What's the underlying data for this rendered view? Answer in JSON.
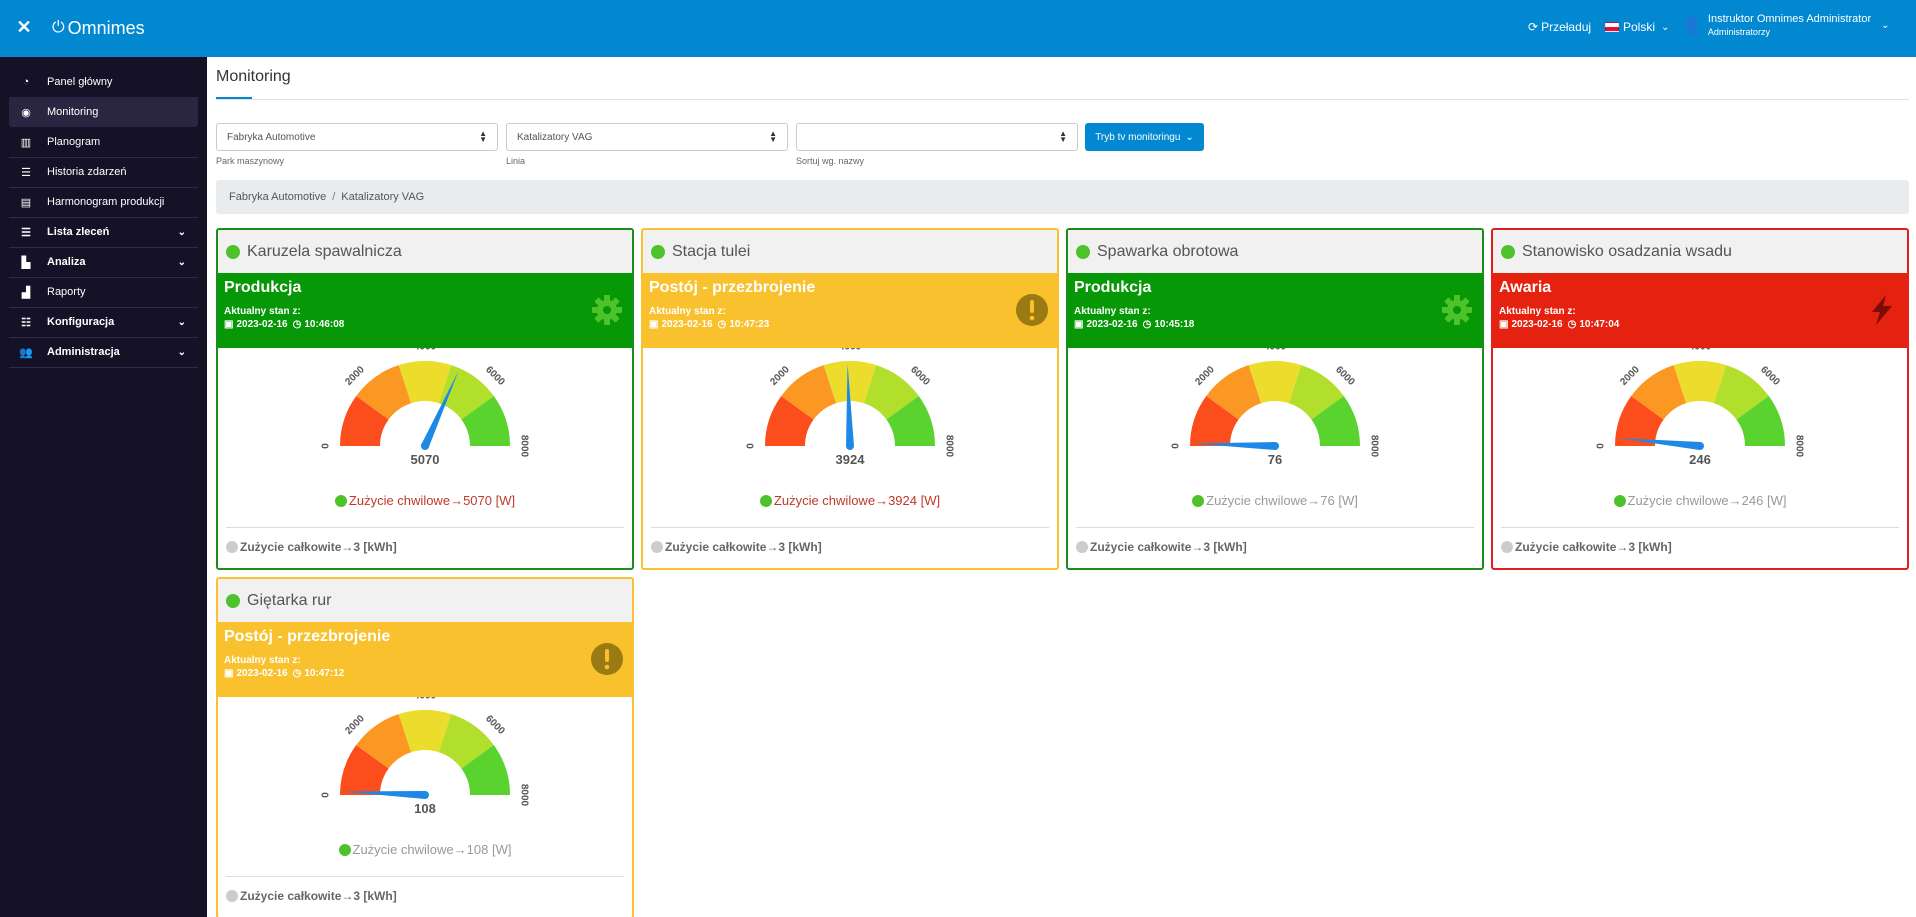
{
  "topbar": {
    "close_glyph": "✕",
    "brand": "Omnimes",
    "reload": "Przeładuj",
    "language": "Polski",
    "user_name": "Instruktor Omnimes Administrator",
    "user_role": "Administratorzy"
  },
  "sidebar": {
    "items": [
      {
        "label": "Panel główny",
        "icon": "dashboard-icon"
      },
      {
        "label": "Monitoring",
        "icon": "eye-icon"
      },
      {
        "label": "Planogram",
        "icon": "map-icon"
      },
      {
        "label": "Historia zdarzeń",
        "icon": "list-icon"
      },
      {
        "label": "Harmonogram produkcji",
        "icon": "calendar-icon"
      },
      {
        "label": "Lista zleceń",
        "icon": "list-icon"
      },
      {
        "label": "Analiza",
        "icon": "chart-icon"
      },
      {
        "label": "Raporty",
        "icon": "report-icon"
      },
      {
        "label": "Konfiguracja",
        "icon": "sliders-icon"
      },
      {
        "label": "Administracja",
        "icon": "users-icon"
      }
    ]
  },
  "page": {
    "title": "Monitoring",
    "filters": {
      "park_value": "Fabryka Automotive",
      "park_label": "Park maszynowy",
      "line_value": "Katalizatory VAG",
      "line_label": "Linia",
      "sort_value": "",
      "sort_label": "Sortuj wg. nazwy"
    },
    "tv_button": "Tryb tv monitoringu",
    "breadcrumb": [
      "Fabryka Automotive",
      "Katalizatory VAG"
    ]
  },
  "labels": {
    "since": "Aktualny stan z:",
    "instant_prefix": "Zużycie chwilowe",
    "total_prefix": "Zużycie całkowite",
    "arrow": "→"
  },
  "gauge_ticks": [
    "0",
    "2000",
    "4000",
    "6000",
    "8000"
  ],
  "gauge_max": 8000,
  "colors": {
    "green": "#069806",
    "yellow": "#f9c12e",
    "red": "#e5210f",
    "needle": "#1e88e5"
  },
  "machines": [
    {
      "name": "Karuzela spawalnicza",
      "status": "Produkcja",
      "state": "green",
      "date": "2023-02-16",
      "time": "10:46:08",
      "value": 5070,
      "value_text": "5070",
      "instant": "5070 [W]",
      "total": "3 [kWh]",
      "status_icon": "gear-icon"
    },
    {
      "name": "Stacja tulei",
      "status": "Postój - przezbrojenie",
      "state": "yellow",
      "date": "2023-02-16",
      "time": "10:47:23",
      "value": 3924,
      "value_text": "3924",
      "instant": "3924 [W]",
      "total": "3 [kWh]",
      "status_icon": "exclamation-icon"
    },
    {
      "name": "Spawarka obrotowa",
      "status": "Produkcja",
      "state": "green",
      "date": "2023-02-16",
      "time": "10:45:18",
      "value": 76,
      "value_text": "76",
      "instant": "76 [W]",
      "total": "3 [kWh]",
      "status_icon": "gear-icon"
    },
    {
      "name": "Stanowisko osadzania wsadu",
      "status": "Awaria",
      "state": "red",
      "date": "2023-02-16",
      "time": "10:47:04",
      "value": 246,
      "value_text": "246",
      "instant": "246 [W]",
      "total": "3 [kWh]",
      "status_icon": "lightning-icon"
    },
    {
      "name": "Giętarka rur",
      "status": "Postój - przezbrojenie",
      "state": "yellow",
      "date": "2023-02-16",
      "time": "10:47:12",
      "value": 108,
      "value_text": "108",
      "instant": "108 [W]",
      "total": "3 [kWh]",
      "status_icon": "exclamation-icon"
    }
  ]
}
